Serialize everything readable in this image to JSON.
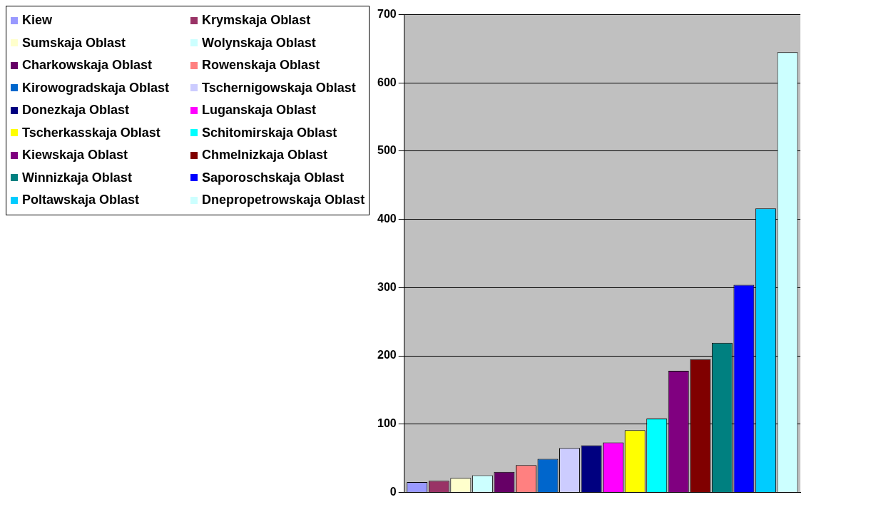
{
  "chart_data": {
    "type": "bar",
    "categories": [
      null
    ],
    "series": [
      {
        "name": "Kiew",
        "color": "#9999ff",
        "values": [
          15
        ]
      },
      {
        "name": "Krymskaja Oblast",
        "color": "#993366",
        "values": [
          17
        ]
      },
      {
        "name": "Sumskaja Oblast",
        "color": "#ffffcc",
        "values": [
          21
        ]
      },
      {
        "name": "Wolynskaja Oblast",
        "color": "#ccffff",
        "values": [
          25
        ]
      },
      {
        "name": "Charkowskaja Oblast",
        "color": "#660066",
        "values": [
          30
        ]
      },
      {
        "name": "Rowenskaja Oblast",
        "color": "#ff8080",
        "values": [
          40
        ]
      },
      {
        "name": "Kirowogradskaja Oblast",
        "color": "#0066cc",
        "values": [
          49
        ]
      },
      {
        "name": "Tschernigowskaja Oblast",
        "color": "#ccccff",
        "values": [
          65
        ]
      },
      {
        "name": "Donezkaja Oblast",
        "color": "#000080",
        "values": [
          69
        ]
      },
      {
        "name": "Luganskaja Oblast",
        "color": "#ff00ff",
        "values": [
          73
        ]
      },
      {
        "name": "Tscherkasskaja Oblast",
        "color": "#ffff00",
        "values": [
          91
        ]
      },
      {
        "name": "Schitomirskaja Oblast",
        "color": "#00ffff",
        "values": [
          108
        ]
      },
      {
        "name": "Kiewskaja Oblast",
        "color": "#800080",
        "values": [
          178
        ]
      },
      {
        "name": "Chmelnizkaja Oblast",
        "color": "#800000",
        "values": [
          195
        ]
      },
      {
        "name": "Winnizkaja Oblast",
        "color": "#008080",
        "values": [
          219
        ]
      },
      {
        "name": "Saporoschskaja Oblast",
        "color": "#0000ff",
        "values": [
          304
        ]
      },
      {
        "name": "Poltawskaja Oblast",
        "color": "#00ccff",
        "values": [
          416
        ]
      },
      {
        "name": "Dnepropetrowskaja Oblast",
        "color": "#ccffff",
        "values": [
          645
        ]
      }
    ],
    "ylim": [
      0,
      700
    ],
    "yticks": [
      0,
      100,
      200,
      300,
      400,
      500,
      600,
      700
    ],
    "grid": "y",
    "legend": "left",
    "tick_labels": "y"
  }
}
